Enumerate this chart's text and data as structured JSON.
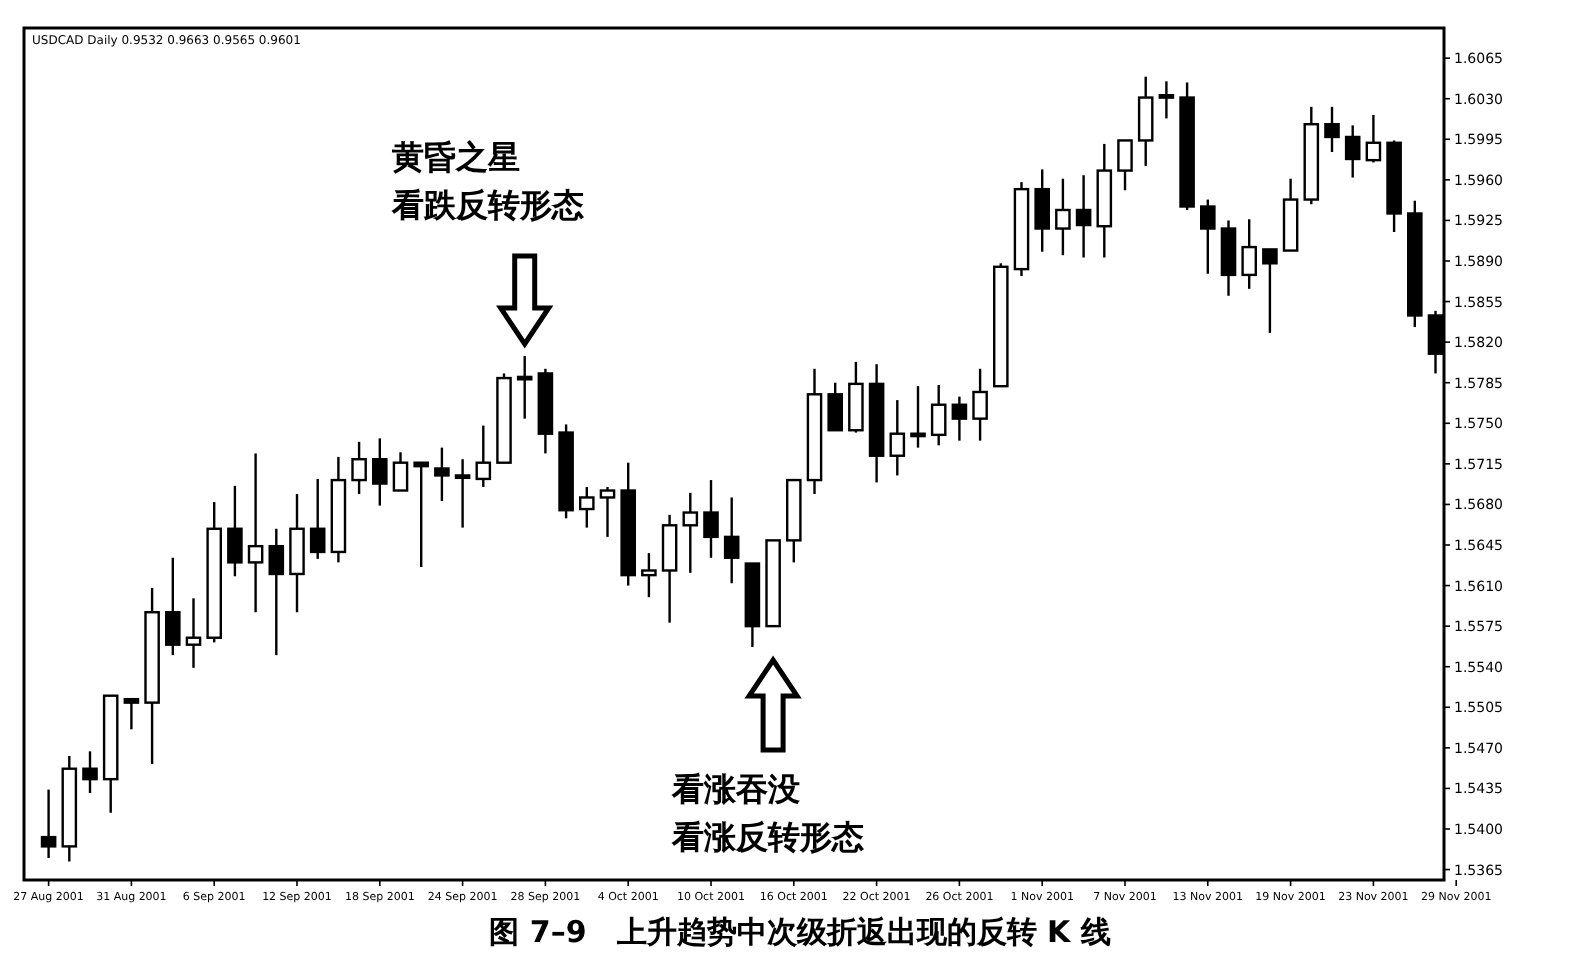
{
  "chart_data": {
    "type": "candlestick",
    "title": "图 7–9　上升趋势中次级折返出现的反转 K 线",
    "annotations": [
      "USDCAD Daily 0.9532 0.9663 0.9565 0.9601",
      "黄昏之星",
      "看跌反转形态",
      "看涨吞没",
      "看涨反转形态"
    ],
    "categories": [
      "27 Aug 2001",
      null,
      null,
      null,
      "31 Aug 2001",
      null,
      null,
      null,
      "6 Sep 2001",
      null,
      null,
      null,
      "12 Sep 2001",
      null,
      null,
      null,
      "18 Sep 2001",
      null,
      null,
      null,
      "24 Sep 2001",
      null,
      null,
      null,
      "28 Sep 2001",
      null,
      null,
      null,
      "4 Oct 2001",
      null,
      null,
      null,
      "10 Oct 2001",
      null,
      null,
      null,
      "16 Oct 2001",
      null,
      null,
      null,
      "22 Oct 2001",
      null,
      null,
      null,
      "26 Oct 2001",
      null,
      null,
      null,
      "1 Nov 2001",
      null,
      null,
      null,
      "7 Nov 2001",
      null,
      null,
      null,
      "13 Nov 2001",
      null,
      null,
      null,
      "19 Nov 2001",
      null,
      null,
      null,
      "23 Nov 2001",
      null,
      null,
      null,
      "29 Nov 2001"
    ],
    "ohlc": [
      [
        1.5393,
        1.5434,
        1.5375,
        1.5385
      ],
      [
        1.5385,
        1.5463,
        1.5372,
        1.5452
      ],
      [
        1.5452,
        1.5467,
        1.5431,
        1.5443
      ],
      [
        1.5443,
        1.5515,
        1.5414,
        1.5515
      ],
      [
        1.5512,
        1.5512,
        1.5486,
        1.5509
      ],
      [
        1.5509,
        1.5608,
        1.5456,
        1.5587
      ],
      [
        1.5587,
        1.5634,
        1.555,
        1.5559
      ],
      [
        1.5559,
        1.5599,
        1.5539,
        1.5565
      ],
      [
        1.5565,
        1.5682,
        1.5561,
        1.5659
      ],
      [
        1.5659,
        1.5696,
        1.5618,
        1.563
      ],
      [
        1.563,
        1.5724,
        1.5587,
        1.5644
      ],
      [
        1.5644,
        1.5659,
        1.555,
        1.562
      ],
      [
        1.562,
        1.5689,
        1.5587,
        1.5659
      ],
      [
        1.5659,
        1.5702,
        1.5633,
        1.5639
      ],
      [
        1.5639,
        1.5721,
        1.563,
        1.5701
      ],
      [
        1.5701,
        1.5734,
        1.5689,
        1.5719
      ],
      [
        1.5719,
        1.5737,
        1.5679,
        1.5698
      ],
      [
        1.5692,
        1.5725,
        1.5692,
        1.5716
      ],
      [
        1.5716,
        1.5716,
        1.5626,
        1.5713
      ],
      [
        1.5711,
        1.5729,
        1.5683,
        1.5705
      ],
      [
        1.5705,
        1.5719,
        1.566,
        1.5705
      ],
      [
        1.5702,
        1.5748,
        1.5695,
        1.5716
      ],
      [
        1.5716,
        1.5793,
        1.5716,
        1.5789
      ],
      [
        1.5789,
        1.5808,
        1.5754,
        1.579
      ],
      [
        1.5793,
        1.5797,
        1.5724,
        1.5741
      ],
      [
        1.5742,
        1.5749,
        1.5668,
        1.5675
      ],
      [
        1.5676,
        1.5695,
        1.566,
        1.5686
      ],
      [
        1.5686,
        1.5695,
        1.5652,
        1.5692
      ],
      [
        1.5692,
        1.5716,
        1.561,
        1.5619
      ],
      [
        1.5619,
        1.5638,
        1.56,
        1.5623
      ],
      [
        1.5623,
        1.5671,
        1.5578,
        1.5662
      ],
      [
        1.5662,
        1.569,
        1.5621,
        1.5673
      ],
      [
        1.5673,
        1.5701,
        1.5634,
        1.5652
      ],
      [
        1.5652,
        1.5686,
        1.5612,
        1.5634
      ],
      [
        1.5629,
        1.5629,
        1.5557,
        1.5575
      ],
      [
        1.5575,
        1.5649,
        1.5575,
        1.5649
      ],
      [
        1.5649,
        1.5702,
        1.563,
        1.5701
      ],
      [
        1.5701,
        1.5797,
        1.5689,
        1.5775
      ],
      [
        1.5775,
        1.5785,
        1.5744,
        1.5744
      ],
      [
        1.5744,
        1.5803,
        1.5742,
        1.5784
      ],
      [
        1.5784,
        1.5801,
        1.5699,
        1.5722
      ],
      [
        1.5722,
        1.577,
        1.5705,
        1.5741
      ],
      [
        1.5741,
        1.5782,
        1.5729,
        1.5741
      ],
      [
        1.574,
        1.5783,
        1.5731,
        1.5766
      ],
      [
        1.5766,
        1.5773,
        1.5735,
        1.5754
      ],
      [
        1.5754,
        1.5797,
        1.5735,
        1.5777
      ],
      [
        1.5782,
        1.5888,
        1.5782,
        1.5885
      ],
      [
        1.5883,
        1.5958,
        1.5877,
        1.5952
      ],
      [
        1.5952,
        1.5969,
        1.5898,
        1.5918
      ],
      [
        1.5918,
        1.5961,
        1.5895,
        1.5934
      ],
      [
        1.5934,
        1.5964,
        1.5893,
        1.5921
      ],
      [
        1.592,
        1.5991,
        1.5893,
        1.5968
      ],
      [
        1.5968,
        1.5994,
        1.5951,
        1.5994
      ],
      [
        1.5994,
        1.6049,
        1.5972,
        1.6031
      ],
      [
        1.6033,
        1.6045,
        1.6013,
        1.6033
      ],
      [
        1.6031,
        1.6044,
        1.5934,
        1.5937
      ],
      [
        1.5937,
        1.5943,
        1.5879,
        1.5918
      ],
      [
        1.5918,
        1.5925,
        1.586,
        1.5878
      ],
      [
        1.5878,
        1.5926,
        1.5866,
        1.5902
      ],
      [
        1.59,
        1.59,
        1.5828,
        1.5888
      ],
      [
        1.5899,
        1.5961,
        1.5899,
        1.5943
      ],
      [
        1.5943,
        1.6023,
        1.5939,
        1.6008
      ],
      [
        1.6008,
        1.6023,
        1.5984,
        1.5997
      ],
      [
        1.5997,
        1.6007,
        1.5962,
        1.5978
      ],
      [
        1.5977,
        1.6016,
        1.5975,
        1.5992
      ],
      [
        1.5992,
        1.5994,
        1.5915,
        1.5931
      ],
      [
        1.5931,
        1.5942,
        1.5833,
        1.5843
      ],
      [
        1.5843,
        1.5847,
        1.5793,
        1.581
      ],
      null
    ],
    "ylim": [
      1.5356,
      1.6091
    ],
    "yticks": [
      1.5365,
      {
        "value": 1.54,
        "label": "1.5400"
      },
      1.5435,
      {
        "value": 1.547,
        "label": "1.5470"
      },
      1.5505,
      {
        "value": 1.554,
        "label": "1.5540"
      },
      1.5575,
      {
        "value": 1.561,
        "label": "1.5610"
      },
      1.5645,
      {
        "value": 1.568,
        "label": "1.5680"
      },
      1.5715,
      {
        "value": 1.575,
        "label": "1.5750"
      },
      1.5785,
      {
        "value": 1.582,
        "label": "1.5820"
      },
      1.5855,
      {
        "value": 1.589,
        "label": "1.5890"
      },
      1.5925,
      {
        "value": 1.596,
        "label": "1.5960"
      },
      1.5995,
      {
        "value": 1.603,
        "label": "1.6030"
      },
      1.6065
    ],
    "grid": false
  }
}
